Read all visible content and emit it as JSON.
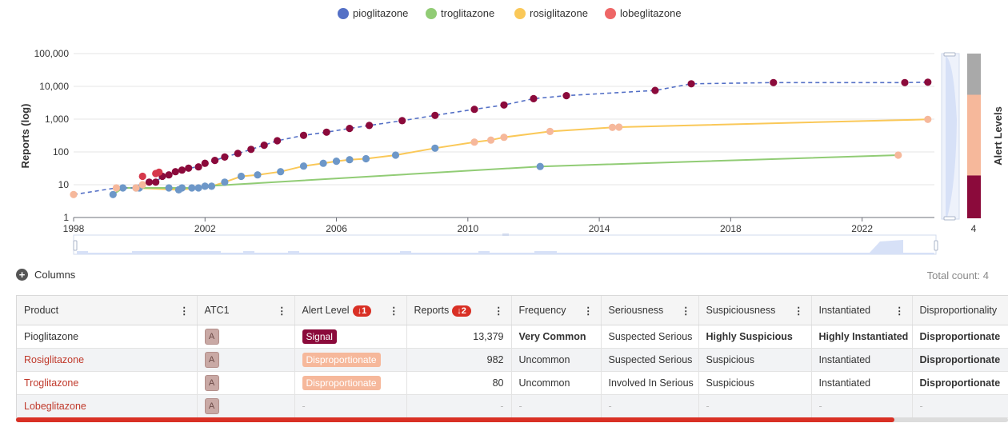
{
  "chart_data": {
    "type": "scatter",
    "ylabel": "Reports (log)",
    "yscale": "log",
    "ylim": [
      1,
      100000
    ],
    "xlim": [
      1998,
      2024.2
    ],
    "x_ticks": [
      1998,
      2002,
      2006,
      2010,
      2014,
      2018,
      2022
    ],
    "x_tick_labels": [
      "1998",
      "2002",
      "2006",
      "2010",
      "2014",
      "2018",
      "2022"
    ],
    "y_ticks": [
      1,
      10,
      100,
      1000,
      10000,
      100000
    ],
    "y_tick_labels": [
      "1",
      "10",
      "100",
      "1,000",
      "10,000",
      "100,000"
    ],
    "legend": [
      "pioglitazone",
      "troglitazone",
      "rosiglitazone",
      "lobeglitazone"
    ],
    "series": [
      {
        "name": "pioglitazone",
        "color": "#5470c6",
        "line": "dashed",
        "points": [
          [
            1998.0,
            5
          ],
          [
            1999.3,
            8
          ],
          [
            1999.9,
            8
          ],
          [
            2000.1,
            10
          ],
          [
            2000.3,
            12
          ],
          [
            2000.5,
            12
          ],
          [
            2000.7,
            18
          ],
          [
            2000.9,
            20
          ],
          [
            2001.1,
            25
          ],
          [
            2001.3,
            28
          ],
          [
            2001.5,
            32
          ],
          [
            2001.8,
            35
          ],
          [
            2002.0,
            45
          ],
          [
            2002.3,
            55
          ],
          [
            2002.6,
            70
          ],
          [
            2003.0,
            90
          ],
          [
            2003.4,
            120
          ],
          [
            2003.8,
            160
          ],
          [
            2004.2,
            220
          ],
          [
            2005.0,
            320
          ],
          [
            2005.7,
            400
          ],
          [
            2006.4,
            520
          ],
          [
            2007.0,
            640
          ],
          [
            2008.0,
            900
          ],
          [
            2009.0,
            1300
          ],
          [
            2010.2,
            2000
          ],
          [
            2011.1,
            2700
          ],
          [
            2012.0,
            4200
          ],
          [
            2013.0,
            5200
          ],
          [
            2015.7,
            7500
          ],
          [
            2016.8,
            12000
          ],
          [
            2019.3,
            13000
          ],
          [
            2023.3,
            13000
          ],
          [
            2024.0,
            13379
          ]
        ],
        "alert_levels": [
          "disp",
          "disp",
          "disp",
          "disp",
          "sig",
          "sig",
          "sig",
          "sig",
          "sig",
          "sig",
          "sig",
          "sig",
          "sig",
          "sig",
          "sig",
          "sig",
          "sig",
          "sig",
          "sig",
          "sig",
          "sig",
          "sig",
          "sig",
          "sig",
          "sig",
          "sig",
          "sig",
          "sig",
          "sig",
          "sig",
          "sig",
          "sig",
          "sig",
          "sig"
        ]
      },
      {
        "name": "troglitazone",
        "color": "#91cc75",
        "line": "solid",
        "points": [
          [
            1999.2,
            5
          ],
          [
            1999.5,
            8
          ],
          [
            2000.0,
            8
          ],
          [
            2000.9,
            8
          ],
          [
            2001.3,
            8
          ],
          [
            2001.6,
            8
          ],
          [
            2002.0,
            9
          ],
          [
            2012.2,
            36
          ],
          [
            2023.1,
            80
          ]
        ],
        "alert_levels": [
          "inst",
          "inst",
          "inst",
          "inst",
          "inst",
          "inst",
          "inst",
          "inst",
          "disp"
        ]
      },
      {
        "name": "rosiglitazone",
        "color": "#fac858",
        "line": "solid",
        "points": [
          [
            1999.9,
            8
          ],
          [
            2001.2,
            7
          ],
          [
            2001.8,
            8
          ],
          [
            2002.2,
            9
          ],
          [
            2002.6,
            12
          ],
          [
            2003.1,
            18
          ],
          [
            2003.6,
            20
          ],
          [
            2004.3,
            25
          ],
          [
            2005.0,
            37
          ],
          [
            2005.6,
            45
          ],
          [
            2006.0,
            52
          ],
          [
            2006.4,
            58
          ],
          [
            2006.9,
            62
          ],
          [
            2007.8,
            80
          ],
          [
            2009.0,
            130
          ],
          [
            2010.2,
            200
          ],
          [
            2010.7,
            230
          ],
          [
            2011.1,
            280
          ],
          [
            2012.5,
            420
          ],
          [
            2014.4,
            560
          ],
          [
            2014.6,
            570
          ],
          [
            2024.0,
            982
          ]
        ],
        "alert_levels": [
          "inst",
          "inst",
          "inst",
          "inst",
          "inst",
          "inst",
          "inst",
          "inst",
          "inst",
          "inst",
          "inst",
          "inst",
          "inst",
          "inst",
          "inst",
          "disp",
          "disp",
          "disp",
          "disp",
          "disp",
          "disp",
          "disp"
        ]
      },
      {
        "name": "lobeglitazone",
        "color": "#ee6666",
        "line": "none",
        "points": [
          [
            2000.1,
            18
          ],
          [
            2000.5,
            22
          ],
          [
            2000.6,
            24
          ]
        ],
        "alert_levels": [
          "red",
          "red",
          "red"
        ]
      }
    ],
    "visual_map": {
      "title": "Alert Levels",
      "max_label": "4",
      "colors": [
        "#a9a9a9",
        "#f6b89b",
        "#8b0a3b"
      ],
      "fractions": [
        0.25,
        0.49,
        0.26
      ]
    }
  },
  "toolbar": {
    "columns_label": "Columns",
    "total_count": "Total count: 4"
  },
  "table": {
    "columns": [
      {
        "label": "Product"
      },
      {
        "label": "ATC1"
      },
      {
        "label": "Alert Level",
        "sort": "1"
      },
      {
        "label": "Reports",
        "sort": "2"
      },
      {
        "label": "Frequency"
      },
      {
        "label": "Seriousness"
      },
      {
        "label": "Suspiciousness"
      },
      {
        "label": "Instantiated"
      },
      {
        "label": "Disproportionality"
      }
    ],
    "rows": [
      {
        "product": "Pioglitazone",
        "atc": "A",
        "alert": "Signal",
        "alert_kind": "signal",
        "reports": "13,379",
        "frequency": "Very Common",
        "seriousness": "Suspected Serious",
        "suspiciousness": "Highly Suspicious",
        "instantiated": "Highly Instantiated",
        "disproportionality": "Disproportionate"
      },
      {
        "product": "Rosiglitazone",
        "atc": "A",
        "alert": "Disproportionate",
        "alert_kind": "disp",
        "reports": "982",
        "frequency": "Uncommon",
        "seriousness": "Suspected Serious",
        "suspiciousness": "Suspicious",
        "instantiated": "Instantiated",
        "disproportionality": "Disproportionate"
      },
      {
        "product": "Troglitazone",
        "atc": "A",
        "alert": "Disproportionate",
        "alert_kind": "disp",
        "reports": "80",
        "frequency": "Uncommon",
        "seriousness": "Involved In Serious",
        "suspiciousness": "Suspicious",
        "instantiated": "Instantiated",
        "disproportionality": "Disproportionate"
      },
      {
        "product": "Lobeglitazone",
        "atc": "A",
        "alert": "-",
        "alert_kind": "none",
        "reports": "-",
        "frequency": "-",
        "seriousness": "-",
        "suspiciousness": "-",
        "instantiated": "-",
        "disproportionality": "-"
      }
    ]
  }
}
